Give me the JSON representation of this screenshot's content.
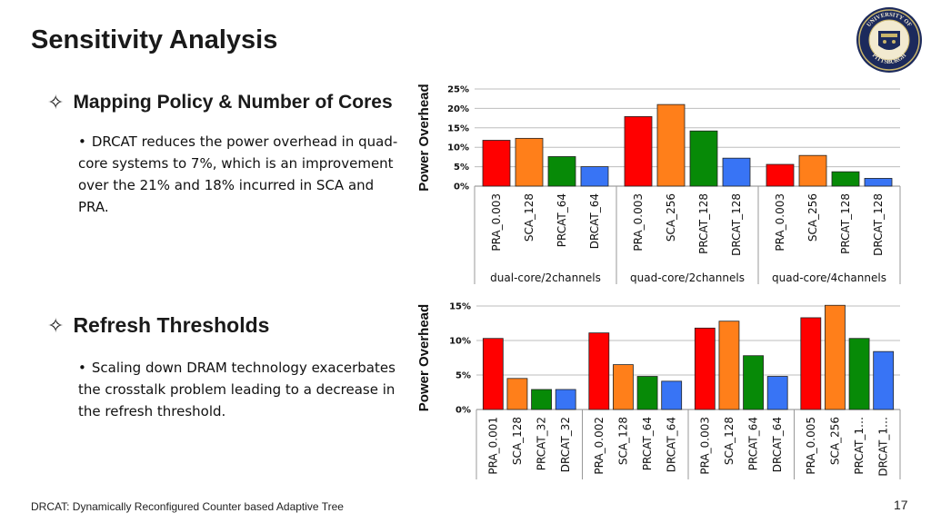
{
  "slide": {
    "title": "Sensitivity Analysis",
    "logo_text_top": "UNIVERSITY OF",
    "logo_text_bottom": "PITTSBURGH",
    "bullet1": {
      "heading": "Mapping Policy & Number of Cores",
      "sub": "DRCAT reduces the power overhead in quad-core systems to 7%, which is an improvement over the 21% and 18% incurred in SCA and PRA."
    },
    "bullet2": {
      "heading": "Refresh Thresholds",
      "sub": "Scaling down DRAM technology exacerbates the crosstalk problem leading to a decrease in the refresh threshold."
    },
    "footer": "DRCAT: Dynamically Reconfigured Counter based Adaptive Tree",
    "page_number": "17"
  },
  "chart_data": [
    {
      "type": "bar",
      "ylabel": "Power Overhead",
      "ylim": [
        0,
        25
      ],
      "yticks": [
        "0%",
        "5%",
        "10%",
        "15%",
        "20%",
        "25%"
      ],
      "grid": true,
      "groups": [
        {
          "name": "dual-core/2channels",
          "categories": [
            "PRA_0.003",
            "SCA_128",
            "PRCAT_64",
            "DRCAT_64"
          ],
          "values": [
            11.8,
            12.3,
            7.6,
            5.0
          ]
        },
        {
          "name": "quad-core/2channels",
          "categories": [
            "PRA_0.003",
            "SCA_256",
            "PRCAT_128",
            "DRCAT_128"
          ],
          "values": [
            17.9,
            21.0,
            14.2,
            7.2
          ]
        },
        {
          "name": "quad-core/4channels",
          "categories": [
            "PRA_0.003",
            "SCA_256",
            "PRCAT_128",
            "DRCAT_128"
          ],
          "values": [
            5.6,
            7.9,
            3.7,
            2.0
          ]
        }
      ],
      "colors": [
        "#ff0000",
        "#ff7f1a",
        "#078a07",
        "#3874f5"
      ]
    },
    {
      "type": "bar",
      "ylabel": "Power Overhead",
      "ylim": [
        0,
        15
      ],
      "yticks": [
        "0%",
        "5%",
        "10%",
        "15%"
      ],
      "grid": true,
      "groups": [
        {
          "categories": [
            "PRA_0.001",
            "SCA_128",
            "PRCAT_32",
            "DRCAT_32"
          ],
          "values": [
            10.3,
            4.5,
            2.9,
            2.9
          ]
        },
        {
          "categories": [
            "PRA_0.002",
            "SCA_128",
            "PRCAT_64",
            "DRCAT_64"
          ],
          "values": [
            11.1,
            6.5,
            4.8,
            4.1
          ]
        },
        {
          "categories": [
            "PRA_0.003",
            "SCA_128",
            "PRCAT_64",
            "DRCAT_64"
          ],
          "values": [
            11.8,
            12.8,
            7.8,
            4.8
          ]
        },
        {
          "categories": [
            "PRA_0.005",
            "SCA_256",
            "PRCAT_1…",
            "DRCAT_1…"
          ],
          "values": [
            13.3,
            15.1,
            10.3,
            8.4
          ]
        }
      ],
      "colors": [
        "#ff0000",
        "#ff7f1a",
        "#078a07",
        "#3874f5"
      ]
    }
  ]
}
